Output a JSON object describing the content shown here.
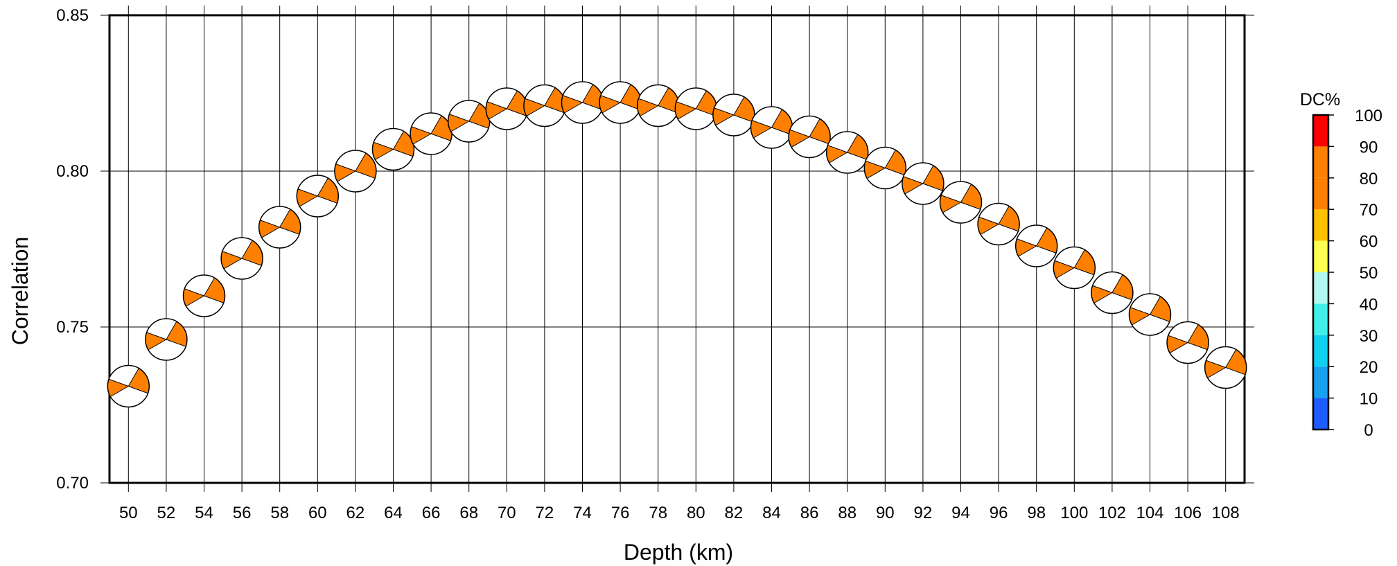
{
  "chart_data": {
    "type": "scatter",
    "title": "",
    "xlabel": "Depth (km)",
    "ylabel": "Correlation",
    "xlim": [
      49,
      109
    ],
    "ylim": [
      0.7,
      0.85
    ],
    "grid": true,
    "x_ticks": [
      "50",
      "52",
      "54",
      "56",
      "58",
      "60",
      "62",
      "64",
      "66",
      "68",
      "70",
      "72",
      "74",
      "76",
      "78",
      "80",
      "82",
      "84",
      "86",
      "88",
      "90",
      "92",
      "94",
      "96",
      "98",
      "100",
      "102",
      "104",
      "106",
      "108"
    ],
    "y_ticks": [
      "0.70",
      "0.75",
      "0.80",
      "0.85"
    ],
    "marker": "focal-mechanism beachball",
    "marker_color": "#ff8000",
    "points": [
      {
        "x": 50,
        "y": 0.731
      },
      {
        "x": 52,
        "y": 0.746
      },
      {
        "x": 54,
        "y": 0.76
      },
      {
        "x": 56,
        "y": 0.772
      },
      {
        "x": 58,
        "y": 0.782
      },
      {
        "x": 60,
        "y": 0.792
      },
      {
        "x": 62,
        "y": 0.8
      },
      {
        "x": 64,
        "y": 0.807
      },
      {
        "x": 66,
        "y": 0.812
      },
      {
        "x": 68,
        "y": 0.816
      },
      {
        "x": 70,
        "y": 0.82
      },
      {
        "x": 72,
        "y": 0.821
      },
      {
        "x": 74,
        "y": 0.822
      },
      {
        "x": 76,
        "y": 0.822
      },
      {
        "x": 78,
        "y": 0.821
      },
      {
        "x": 80,
        "y": 0.82
      },
      {
        "x": 82,
        "y": 0.818
      },
      {
        "x": 84,
        "y": 0.814
      },
      {
        "x": 86,
        "y": 0.811
      },
      {
        "x": 88,
        "y": 0.806
      },
      {
        "x": 90,
        "y": 0.801
      },
      {
        "x": 92,
        "y": 0.796
      },
      {
        "x": 94,
        "y": 0.79
      },
      {
        "x": 96,
        "y": 0.783
      },
      {
        "x": 98,
        "y": 0.776
      },
      {
        "x": 100,
        "y": 0.769
      },
      {
        "x": 102,
        "y": 0.761
      },
      {
        "x": 104,
        "y": 0.754
      },
      {
        "x": 106,
        "y": 0.745
      },
      {
        "x": 108,
        "y": 0.737
      }
    ],
    "colorbar": {
      "label": "DC%",
      "ticks": [
        "0",
        "10",
        "20",
        "30",
        "40",
        "50",
        "60",
        "70",
        "80",
        "90",
        "100"
      ],
      "colors": [
        "#1e5cff",
        "#1aa0f0",
        "#12d0f0",
        "#40f0e8",
        "#b0f8f0",
        "#ffff50",
        "#ffc000",
        "#ff8000",
        "#ff8000",
        "#ff0000"
      ]
    }
  }
}
